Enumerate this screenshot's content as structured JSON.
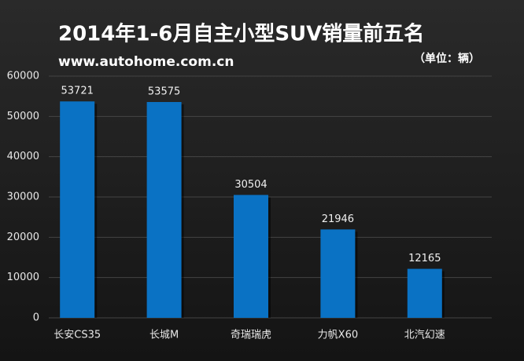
{
  "chart_data": {
    "type": "bar",
    "title": "2014年1-6月自主小型SUV销量前五名",
    "subtitle": "www.autohome.com.cn",
    "unit": "（单位：辆）",
    "categories": [
      "长安CS35",
      "长城M",
      "奇瑞瑞虎",
      "力帆X60",
      "北汽幻速"
    ],
    "values": [
      53721,
      53575,
      30504,
      21946,
      12165
    ],
    "color": "#0a72c4",
    "ylim": [
      0,
      60000
    ],
    "yticks": [
      0,
      10000,
      20000,
      30000,
      40000,
      50000,
      60000
    ],
    "grid": true
  }
}
